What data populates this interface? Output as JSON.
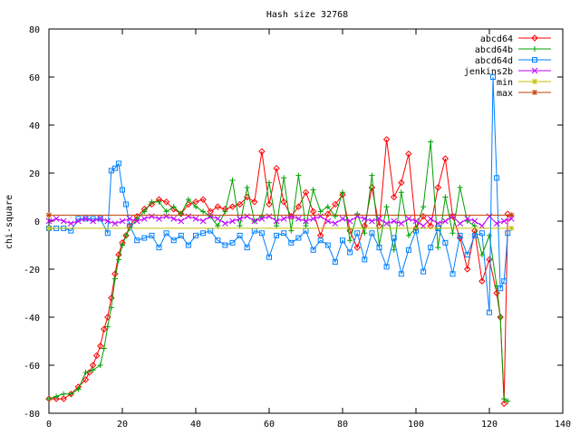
{
  "chart_data": {
    "type": "line",
    "title": "Hash size 32768",
    "xlabel": "",
    "ylabel": "chi-square",
    "xlim": [
      0,
      140
    ],
    "ylim": [
      -80,
      80
    ],
    "xticks": [
      0,
      20,
      40,
      60,
      80,
      100,
      120,
      140
    ],
    "yticks": [
      -80,
      -60,
      -40,
      -20,
      0,
      20,
      40,
      60,
      80
    ],
    "xtick_labels": [
      "0",
      "20",
      "40",
      "60",
      "80",
      "100",
      "120",
      "140"
    ],
    "ytick_labels": [
      "-80",
      "-60",
      "-40",
      "-20",
      "0",
      "20",
      "40",
      "60",
      "80"
    ],
    "grid": false,
    "legend_position": "top-right",
    "series": [
      {
        "name": "abcd64",
        "color": "#ff0000",
        "marker": "diamond",
        "x": [
          0,
          2,
          4,
          6,
          8,
          10,
          11,
          12,
          13,
          14,
          15,
          16,
          17,
          18,
          19,
          20,
          21,
          22,
          24,
          26,
          28,
          30,
          32,
          34,
          36,
          38,
          40,
          42,
          44,
          46,
          48,
          50,
          52,
          54,
          56,
          58,
          60,
          62,
          64,
          66,
          68,
          70,
          72,
          74,
          76,
          78,
          80,
          82,
          84,
          86,
          88,
          90,
          92,
          94,
          96,
          98,
          100,
          102,
          104,
          106,
          108,
          110,
          112,
          114,
          116,
          118,
          120,
          122,
          123,
          124,
          125
        ],
        "y": [
          -74,
          -74,
          -74,
          -72,
          -69,
          -66,
          -63,
          -60,
          -56,
          -52,
          -45,
          -40,
          -32,
          -22,
          -14,
          -9,
          -6,
          -2,
          2,
          5,
          7,
          9,
          8,
          5,
          3,
          7,
          8,
          9,
          4,
          6,
          5,
          6,
          7,
          10,
          8,
          29,
          7,
          22,
          8,
          2,
          6,
          12,
          4,
          -6,
          3,
          7,
          11,
          -4,
          -11,
          -2,
          14,
          -2,
          34,
          10,
          16,
          28,
          -3,
          2,
          -2,
          14,
          26,
          2,
          -7,
          -20,
          -4,
          -25,
          -16,
          -30,
          -40,
          -76,
          3
        ]
      },
      {
        "name": "abcd64b",
        "color": "#00a000",
        "marker": "plus",
        "x": [
          0,
          2,
          4,
          6,
          8,
          10,
          12,
          14,
          15,
          16,
          17,
          18,
          19,
          20,
          21,
          22,
          24,
          26,
          28,
          30,
          32,
          34,
          36,
          38,
          40,
          42,
          44,
          46,
          48,
          50,
          52,
          54,
          56,
          58,
          60,
          62,
          64,
          66,
          68,
          70,
          72,
          74,
          76,
          78,
          80,
          82,
          84,
          86,
          88,
          90,
          92,
          94,
          96,
          98,
          100,
          102,
          104,
          106,
          108,
          110,
          112,
          114,
          116,
          118,
          120,
          122,
          123,
          124,
          125
        ],
        "y": [
          -74,
          -73,
          -72,
          -72,
          -70,
          -63,
          -62,
          -60,
          -53,
          -44,
          -36,
          -24,
          -16,
          -10,
          -6,
          -3,
          1,
          4,
          8,
          8,
          4,
          6,
          3,
          9,
          6,
          4,
          2,
          -2,
          4,
          17,
          -2,
          14,
          0,
          2,
          16,
          -2,
          18,
          -4,
          19,
          -2,
          13,
          4,
          6,
          2,
          12,
          -8,
          3,
          -5,
          19,
          -10,
          6,
          -12,
          12,
          -6,
          -3,
          6,
          33,
          -11,
          10,
          -5,
          14,
          0,
          -2,
          -14,
          -6,
          -27,
          -40,
          -74,
          -75
        ]
      },
      {
        "name": "abcd64d",
        "color": "#0080ff",
        "marker": "square",
        "x": [
          0,
          2,
          4,
          6,
          8,
          10,
          12,
          14,
          16,
          17,
          18,
          19,
          20,
          21,
          22,
          24,
          26,
          28,
          30,
          32,
          34,
          36,
          38,
          40,
          42,
          44,
          46,
          48,
          50,
          52,
          54,
          56,
          58,
          60,
          62,
          64,
          66,
          68,
          70,
          72,
          74,
          76,
          78,
          80,
          82,
          84,
          86,
          88,
          90,
          92,
          94,
          96,
          98,
          100,
          102,
          104,
          106,
          108,
          110,
          112,
          114,
          116,
          118,
          120,
          121,
          122,
          123,
          124,
          125
        ],
        "y": [
          -3,
          -3,
          -3,
          -4,
          1,
          1,
          1,
          1,
          -5,
          21,
          22,
          24,
          13,
          7,
          -2,
          -8,
          -7,
          -6,
          -11,
          -5,
          -8,
          -6,
          -10,
          -6,
          -5,
          -4,
          -8,
          -10,
          -9,
          -6,
          -11,
          -4,
          -5,
          -15,
          -6,
          -5,
          -9,
          -7,
          -4,
          -12,
          -8,
          -10,
          -17,
          -8,
          -13,
          -5,
          -16,
          -5,
          -11,
          -19,
          -7,
          -22,
          -12,
          -4,
          -21,
          -11,
          -3,
          -9,
          -22,
          -6,
          -14,
          -6,
          -5,
          -38,
          60,
          18,
          -28,
          -25,
          -5
        ]
      },
      {
        "name": "jenkins2b",
        "color": "#c000ff",
        "marker": "x",
        "x": [
          0,
          2,
          4,
          6,
          8,
          10,
          12,
          14,
          16,
          18,
          20,
          22,
          24,
          26,
          28,
          30,
          32,
          34,
          36,
          38,
          40,
          42,
          44,
          46,
          48,
          50,
          52,
          54,
          56,
          58,
          60,
          62,
          64,
          66,
          68,
          70,
          72,
          74,
          76,
          78,
          80,
          82,
          84,
          86,
          88,
          90,
          92,
          94,
          96,
          98,
          100,
          102,
          104,
          106,
          108,
          110,
          112,
          114,
          116,
          118,
          120,
          122,
          124,
          126
        ],
        "y": [
          0,
          1,
          0,
          -1,
          0,
          1,
          0,
          1,
          0,
          -1,
          0,
          1,
          0,
          1,
          2,
          1,
          2,
          1,
          0,
          2,
          1,
          0,
          2,
          1,
          -1,
          0,
          1,
          2,
          0,
          1,
          2,
          0,
          1,
          2,
          1,
          0,
          1,
          2,
          0,
          -1,
          1,
          0,
          2,
          1,
          0,
          1,
          -1,
          0,
          -1,
          1,
          0,
          -2,
          1,
          -1,
          0,
          2,
          -1,
          1,
          0,
          -2,
          2,
          -1,
          0,
          1
        ]
      },
      {
        "name": "min",
        "color": "#c0c000",
        "marker": "star",
        "x": [
          0,
          126
        ],
        "y": [
          -3,
          -3
        ]
      },
      {
        "name": "max",
        "color": "#c04000",
        "marker": "asterisk",
        "x": [
          0,
          126
        ],
        "y": [
          2.5,
          2.5
        ]
      }
    ]
  }
}
